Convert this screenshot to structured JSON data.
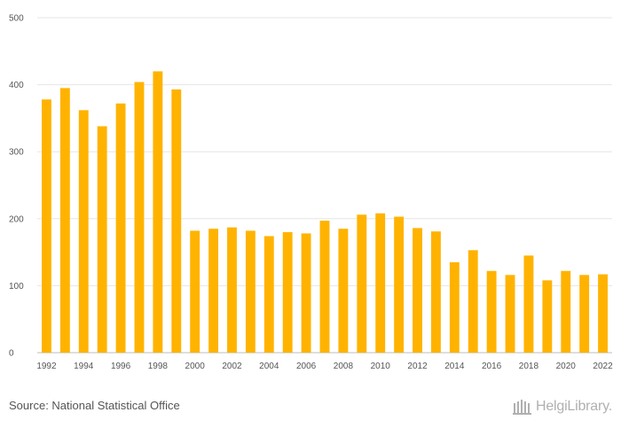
{
  "chart_data": {
    "type": "bar",
    "categories": [
      "1992",
      "1993",
      "1994",
      "1995",
      "1996",
      "1997",
      "1998",
      "1999",
      "2000",
      "2001",
      "2002",
      "2003",
      "2004",
      "2005",
      "2006",
      "2007",
      "2008",
      "2009",
      "2010",
      "2011",
      "2012",
      "2013",
      "2014",
      "2015",
      "2016",
      "2017",
      "2018",
      "2019",
      "2020",
      "2021",
      "2022"
    ],
    "x_tick_labels": [
      "1992",
      "1994",
      "1996",
      "1998",
      "2000",
      "2002",
      "2004",
      "2006",
      "2008",
      "2010",
      "2012",
      "2014",
      "2016",
      "2018",
      "2020",
      "2022"
    ],
    "values": [
      378,
      395,
      362,
      338,
      372,
      404,
      420,
      393,
      182,
      185,
      187,
      182,
      174,
      180,
      178,
      197,
      185,
      206,
      208,
      203,
      186,
      181,
      135,
      153,
      122,
      116,
      145,
      108,
      122,
      116,
      117
    ],
    "y_ticks": [
      0,
      100,
      200,
      300,
      400,
      500
    ],
    "ylim": [
      0,
      500
    ],
    "title": "",
    "xlabel": "",
    "ylabel": "",
    "grid": true,
    "bar_color": "#ffb300",
    "grid_color": "#e6e6e6"
  },
  "footer": {
    "source": "Source: National Statistical Office",
    "logo_text": "HelgiLibrary."
  }
}
